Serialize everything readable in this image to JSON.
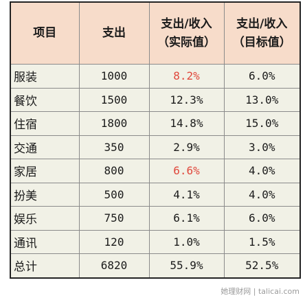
{
  "table": {
    "headers": [
      "项目",
      "支出",
      "支出/收入\n（实际值）",
      "支出/收入\n（目标值）"
    ],
    "rows": [
      {
        "item": "服装",
        "spend": "1000",
        "actual": "8.2%",
        "target": "6.0%",
        "actual_highlight": true
      },
      {
        "item": "餐饮",
        "spend": "1500",
        "actual": "12.3%",
        "target": "13.0%",
        "actual_highlight": false
      },
      {
        "item": "住宿",
        "spend": "1800",
        "actual": "14.8%",
        "target": "15.0%",
        "actual_highlight": false
      },
      {
        "item": "交通",
        "spend": "350",
        "actual": "2.9%",
        "target": "3.0%",
        "actual_highlight": false
      },
      {
        "item": "家居",
        "spend": "800",
        "actual": "6.6%",
        "target": "4.0%",
        "actual_highlight": true
      },
      {
        "item": "扮美",
        "spend": "500",
        "actual": "4.1%",
        "target": "4.0%",
        "actual_highlight": false
      },
      {
        "item": "娱乐",
        "spend": "750",
        "actual": "6.1%",
        "target": "6.0%",
        "actual_highlight": false
      },
      {
        "item": "通讯",
        "spend": "120",
        "actual": "1.0%",
        "target": "1.5%",
        "actual_highlight": false
      },
      {
        "item": "总计",
        "spend": "6820",
        "actual": "55.9%",
        "target": "52.5%",
        "actual_highlight": false
      }
    ]
  },
  "colors": {
    "header_bg": "#f7dcca",
    "body_bg": "#f1f1e6",
    "highlight": "#e0483c"
  },
  "watermark": "她理财网 | talicai.com"
}
